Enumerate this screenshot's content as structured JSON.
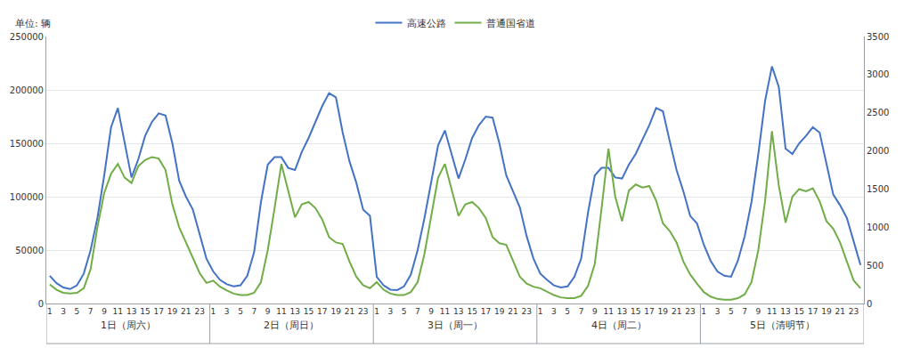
{
  "chart_data": {
    "type": "line",
    "y_label": "单位: 辆",
    "categories": [
      "1",
      null,
      "3",
      null,
      "5",
      null,
      "7",
      null,
      "9",
      null,
      "11",
      null,
      "13",
      null,
      "15",
      null,
      "17",
      null,
      "19",
      null,
      "21",
      null,
      "23",
      null,
      "1",
      null,
      "3",
      null,
      "5",
      null,
      "7",
      null,
      "9",
      null,
      "11",
      null,
      "13",
      null,
      "15",
      null,
      "17",
      null,
      "19",
      null,
      "21",
      null,
      "23",
      null,
      "1",
      null,
      "3",
      null,
      "5",
      null,
      "7",
      null,
      "9",
      null,
      "11",
      null,
      "13",
      null,
      "15",
      null,
      "17",
      null,
      "19",
      null,
      "21",
      null,
      "23",
      null,
      "1",
      null,
      "3",
      null,
      "5",
      null,
      "7",
      null,
      "9",
      null,
      "11",
      null,
      "13",
      null,
      "15",
      null,
      "17",
      null,
      "19",
      null,
      "21",
      null,
      "23",
      null,
      "1",
      null,
      "3",
      null,
      "5",
      null,
      "7",
      null,
      "9",
      null,
      "11",
      null,
      "13",
      null,
      "15",
      null,
      "17",
      null,
      "19",
      null,
      "21",
      null,
      "23",
      null
    ],
    "x_groups": [
      "1日（周六）",
      "2日（周日）",
      "3日（周一）",
      "4日（周二）",
      "5日（清明节）"
    ],
    "series": [
      {
        "name": "高速公路",
        "color": "#4472c4",
        "values": [
          26000,
          19000,
          15000,
          13500,
          17000,
          28000,
          50000,
          80000,
          120000,
          165000,
          183000,
          150000,
          118000,
          135000,
          157000,
          170000,
          178000,
          176000,
          150000,
          115000,
          100000,
          88000,
          65000,
          42000,
          30000,
          22000,
          18000,
          16000,
          17000,
          26000,
          48000,
          95000,
          130000,
          137000,
          137000,
          127000,
          125000,
          142000,
          155000,
          170000,
          185000,
          197000,
          193000,
          160000,
          133000,
          113000,
          88000,
          82000,
          25000,
          17000,
          13000,
          12500,
          16000,
          27000,
          50000,
          80000,
          115000,
          148000,
          162000,
          140000,
          117000,
          135000,
          155000,
          167000,
          175000,
          174000,
          150000,
          120000,
          105000,
          90000,
          63000,
          42000,
          28000,
          22000,
          17000,
          15000,
          16000,
          25000,
          42000,
          85000,
          120000,
          127000,
          127000,
          118000,
          117000,
          130000,
          140000,
          153000,
          167000,
          183000,
          180000,
          152000,
          125000,
          105000,
          82000,
          75000,
          55000,
          40000,
          30000,
          26000,
          25000,
          40000,
          63000,
          95000,
          140000,
          190000,
          222000,
          203000,
          145000,
          140000,
          150000,
          157000,
          165000,
          160000,
          132000,
          102000,
          92000,
          80000,
          58000,
          36000
        ]
      },
      {
        "name": "普通国省道",
        "color": "#70ad47",
        "axis": "y2",
        "values": [
          250,
          180,
          140,
          130,
          140,
          200,
          450,
          1000,
          1450,
          1700,
          1830,
          1650,
          1580,
          1800,
          1880,
          1920,
          1900,
          1750,
          1300,
          1000,
          800,
          600,
          400,
          270,
          300,
          220,
          170,
          130,
          110,
          110,
          140,
          280,
          700,
          1250,
          1830,
          1480,
          1130,
          1300,
          1330,
          1250,
          1100,
          870,
          800,
          780,
          550,
          350,
          240,
          200,
          280,
          180,
          130,
          110,
          110,
          150,
          280,
          650,
          1150,
          1650,
          1830,
          1480,
          1150,
          1300,
          1330,
          1250,
          1120,
          870,
          790,
          770,
          550,
          350,
          260,
          220,
          200,
          150,
          110,
          80,
          70,
          70,
          100,
          230,
          520,
          1250,
          2030,
          1400,
          1080,
          1480,
          1560,
          1520,
          1540,
          1350,
          1050,
          950,
          800,
          550,
          380,
          260,
          150,
          90,
          60,
          50,
          50,
          70,
          120,
          280,
          700,
          1350,
          2260,
          1550,
          1060,
          1400,
          1500,
          1470,
          1510,
          1340,
          1080,
          980,
          800,
          550,
          300,
          200
        ]
      }
    ],
    "ylim": [
      0,
      250000
    ],
    "yticks": [
      0,
      50000,
      100000,
      150000,
      200000,
      250000
    ],
    "y2lim": [
      0,
      3500
    ],
    "y2ticks": [
      0,
      500,
      1000,
      1500,
      2000,
      2500,
      3000,
      3500
    ],
    "grid": true,
    "legend": "top"
  }
}
